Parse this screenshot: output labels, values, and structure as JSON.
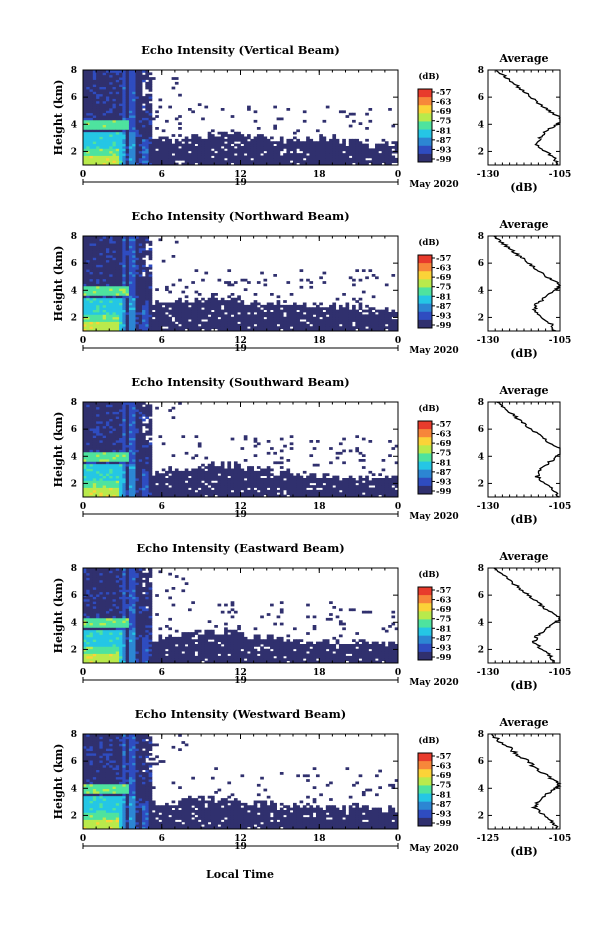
{
  "figure": {
    "shared_xlabel": "Local Time",
    "date_label": "May 2020",
    "day_label": "19"
  },
  "colorbar": {
    "unit_label": "(dB)",
    "ticks": [
      "-57",
      "-63",
      "-69",
      "-75",
      "-81",
      "-87",
      "-93",
      "-99"
    ],
    "colors": [
      "#e83b2c",
      "#f7873a",
      "#fbd338",
      "#b9ea4c",
      "#4ee39f",
      "#25c6e5",
      "#2c86d3",
      "#2f4cc0",
      "#30306e"
    ]
  },
  "chart_data": [
    {
      "type": "heatmap",
      "title": "Echo Intensity (Vertical Beam)",
      "ylabel": "Height (km)",
      "xlim": [
        0,
        24
      ],
      "ylim": [
        1,
        8
      ],
      "xticks": [
        "0",
        "6",
        "12",
        "18",
        "0"
      ],
      "yticks": [
        "2",
        "4",
        "6",
        "8"
      ],
      "cloud_top_km": [
        3.2,
        3.0,
        2.9,
        3.1,
        3.3,
        3.1,
        2.8,
        2.9,
        2.7,
        2.5
      ],
      "bright_band_km": 4.0,
      "average_profile": {
        "title": "Average",
        "xlabel": "(dB)",
        "xlim": [
          -130,
          -105
        ],
        "xticks": [
          "-130",
          "-105"
        ],
        "yticks": [
          "2",
          "4",
          "6",
          "8"
        ],
        "height_km": [
          1,
          1.5,
          2,
          2.5,
          3,
          3.5,
          4,
          4.2,
          4.5,
          5,
          5.5,
          6,
          6.5,
          7,
          7.5,
          8
        ],
        "value_db": [
          -106,
          -107,
          -110,
          -113,
          -112,
          -110,
          -106,
          -104,
          -105,
          -109,
          -112,
          -115,
          -118,
          -121,
          -124,
          -127
        ]
      }
    },
    {
      "type": "heatmap",
      "title": "Echo Intensity (Northward Beam)",
      "ylabel": "Height (km)",
      "xlim": [
        0,
        24
      ],
      "ylim": [
        1,
        8
      ],
      "xticks": [
        "0",
        "6",
        "12",
        "18",
        "0"
      ],
      "yticks": [
        "2",
        "4",
        "6",
        "8"
      ],
      "cloud_top_km": [
        3.6,
        3.4,
        3.1,
        3.3,
        3.5,
        3.2,
        3.0,
        2.9,
        2.8,
        2.7
      ],
      "bright_band_km": 4.0,
      "average_profile": {
        "title": "Average",
        "xlabel": "(dB)",
        "xlim": [
          -130,
          -105
        ],
        "xticks": [
          "-130",
          "-105"
        ],
        "yticks": [
          "2",
          "4",
          "6",
          "8"
        ],
        "height_km": [
          1,
          1.5,
          2,
          2.5,
          3,
          3.5,
          4,
          4.3,
          4.6,
          5,
          5.5,
          6,
          6.5,
          7,
          7.5,
          8
        ],
        "value_db": [
          -107,
          -108,
          -111,
          -114,
          -113,
          -110,
          -107,
          -105,
          -106,
          -110,
          -113,
          -116,
          -119,
          -122,
          -125,
          -128
        ]
      }
    },
    {
      "type": "heatmap",
      "title": "Echo Intensity (Southward Beam)",
      "ylabel": "Height (km)",
      "xlim": [
        0,
        24
      ],
      "ylim": [
        1,
        8
      ],
      "xticks": [
        "0",
        "6",
        "12",
        "18",
        "0"
      ],
      "yticks": [
        "2",
        "4",
        "6",
        "8"
      ],
      "cloud_top_km": [
        3.0,
        2.9,
        2.7,
        3.0,
        3.4,
        3.2,
        2.8,
        2.6,
        2.5,
        2.4
      ],
      "bright_band_km": 4.0,
      "average_profile": {
        "title": "Average",
        "xlabel": "(dB)",
        "xlim": [
          -130,
          -105
        ],
        "xticks": [
          "-130",
          "-105"
        ],
        "yticks": [
          "2",
          "4",
          "6",
          "8"
        ],
        "height_km": [
          1,
          1.5,
          2,
          2.5,
          3,
          3.5,
          4,
          4.3,
          4.6,
          5,
          5.5,
          6,
          6.5,
          7,
          7.5,
          8
        ],
        "value_db": [
          -106,
          -107,
          -110,
          -113,
          -112,
          -109,
          -106,
          -104,
          -105,
          -109,
          -112,
          -115,
          -118,
          -121,
          -124,
          -127
        ]
      }
    },
    {
      "type": "heatmap",
      "title": "Echo Intensity (Eastward Beam)",
      "ylabel": "Height (km)",
      "xlim": [
        0,
        24
      ],
      "ylim": [
        1,
        8
      ],
      "xticks": [
        "0",
        "6",
        "12",
        "18",
        "0"
      ],
      "yticks": [
        "2",
        "4",
        "6",
        "8"
      ],
      "cloud_top_km": [
        3.1,
        3.0,
        2.8,
        3.2,
        3.3,
        3.0,
        2.7,
        2.6,
        2.5,
        2.4
      ],
      "bright_band_km": 4.0,
      "average_profile": {
        "title": "Average",
        "xlabel": "(dB)",
        "xlim": [
          -130,
          -105
        ],
        "xticks": [
          "-130",
          "-105"
        ],
        "yticks": [
          "2",
          "4",
          "6",
          "8"
        ],
        "height_km": [
          1,
          1.5,
          2,
          2.5,
          3,
          3.5,
          4,
          4.2,
          4.5,
          5,
          5.5,
          6,
          6.5,
          7,
          7.5,
          8
        ],
        "value_db": [
          -107,
          -108,
          -111,
          -114,
          -113,
          -110,
          -107,
          -105,
          -106,
          -110,
          -113,
          -116,
          -119,
          -122,
          -125,
          -128
        ]
      }
    },
    {
      "type": "heatmap",
      "title": "Echo Intensity (Westward Beam)",
      "ylabel": "Height (km)",
      "xlim": [
        0,
        24
      ],
      "ylim": [
        1,
        8
      ],
      "xticks": [
        "0",
        "6",
        "12",
        "18",
        "0"
      ],
      "yticks": [
        "2",
        "4",
        "6",
        "8"
      ],
      "cloud_top_km": [
        3.2,
        3.0,
        2.9,
        3.3,
        3.2,
        3.0,
        2.7,
        2.6,
        2.6,
        2.5
      ],
      "bright_band_km": 4.0,
      "average_profile": {
        "title": "Average",
        "xlabel": "(dB)",
        "xlim": [
          -125,
          -105
        ],
        "xticks": [
          "-125",
          "-105"
        ],
        "yticks": [
          "2",
          "4",
          "6",
          "8"
        ],
        "height_km": [
          1,
          1.5,
          2,
          2.5,
          3,
          3.5,
          4,
          4.2,
          4.5,
          5,
          5.5,
          6,
          6.5,
          7,
          7.5,
          8
        ],
        "value_db": [
          -106,
          -107,
          -109,
          -112,
          -111,
          -109,
          -106,
          -105,
          -106,
          -109,
          -112,
          -114,
          -117,
          -119,
          -122,
          -124
        ]
      }
    }
  ]
}
